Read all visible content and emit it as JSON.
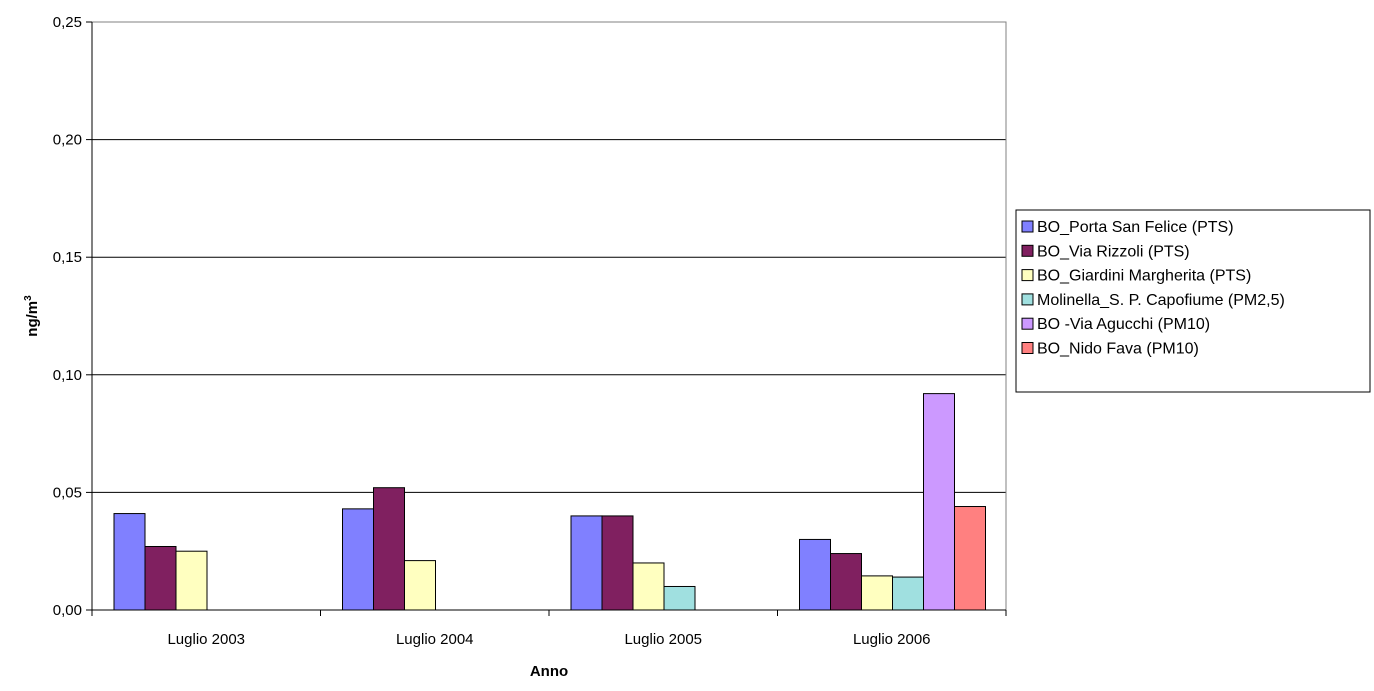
{
  "chart_data": {
    "type": "bar",
    "title": "",
    "xlabel": "Anno",
    "ylabel": "ng/m",
    "ylabel_superscript": "3",
    "ylim": [
      0,
      0.25
    ],
    "yticks": [
      "0,00",
      "0,05",
      "0,10",
      "0,15",
      "0,20",
      "0,25"
    ],
    "ytick_values": [
      0,
      0.05,
      0.1,
      0.15,
      0.2,
      0.25
    ],
    "grid": true,
    "legend_position": "right",
    "categories": [
      "Luglio 2003",
      "Luglio 2004",
      "Luglio 2005",
      "Luglio 2006"
    ],
    "series": [
      {
        "name": "BO_Porta San Felice (PTS)",
        "color": "#8080FF",
        "values": [
          0.041,
          0.043,
          0.04,
          0.03
        ]
      },
      {
        "name": "BO_Via Rizzoli (PTS)",
        "color": "#802060",
        "values": [
          0.027,
          0.052,
          0.04,
          0.024
        ]
      },
      {
        "name": "BO_Giardini Margherita (PTS)",
        "color": "#FFFFC0",
        "values": [
          0.025,
          0.021,
          0.02,
          0.0145
        ]
      },
      {
        "name": "Molinella_S. P. Capofiume (PM2,5)",
        "color": "#A0E0E0",
        "values": [
          null,
          null,
          0.01,
          0.014
        ]
      },
      {
        "name": "BO -Via Agucchi (PM10)",
        "color": "#CC99FF",
        "values": [
          null,
          null,
          null,
          0.092
        ]
      },
      {
        "name": "BO_Nido Fava (PM10)",
        "color": "#FF8080",
        "values": [
          null,
          null,
          null,
          0.044
        ]
      }
    ]
  }
}
